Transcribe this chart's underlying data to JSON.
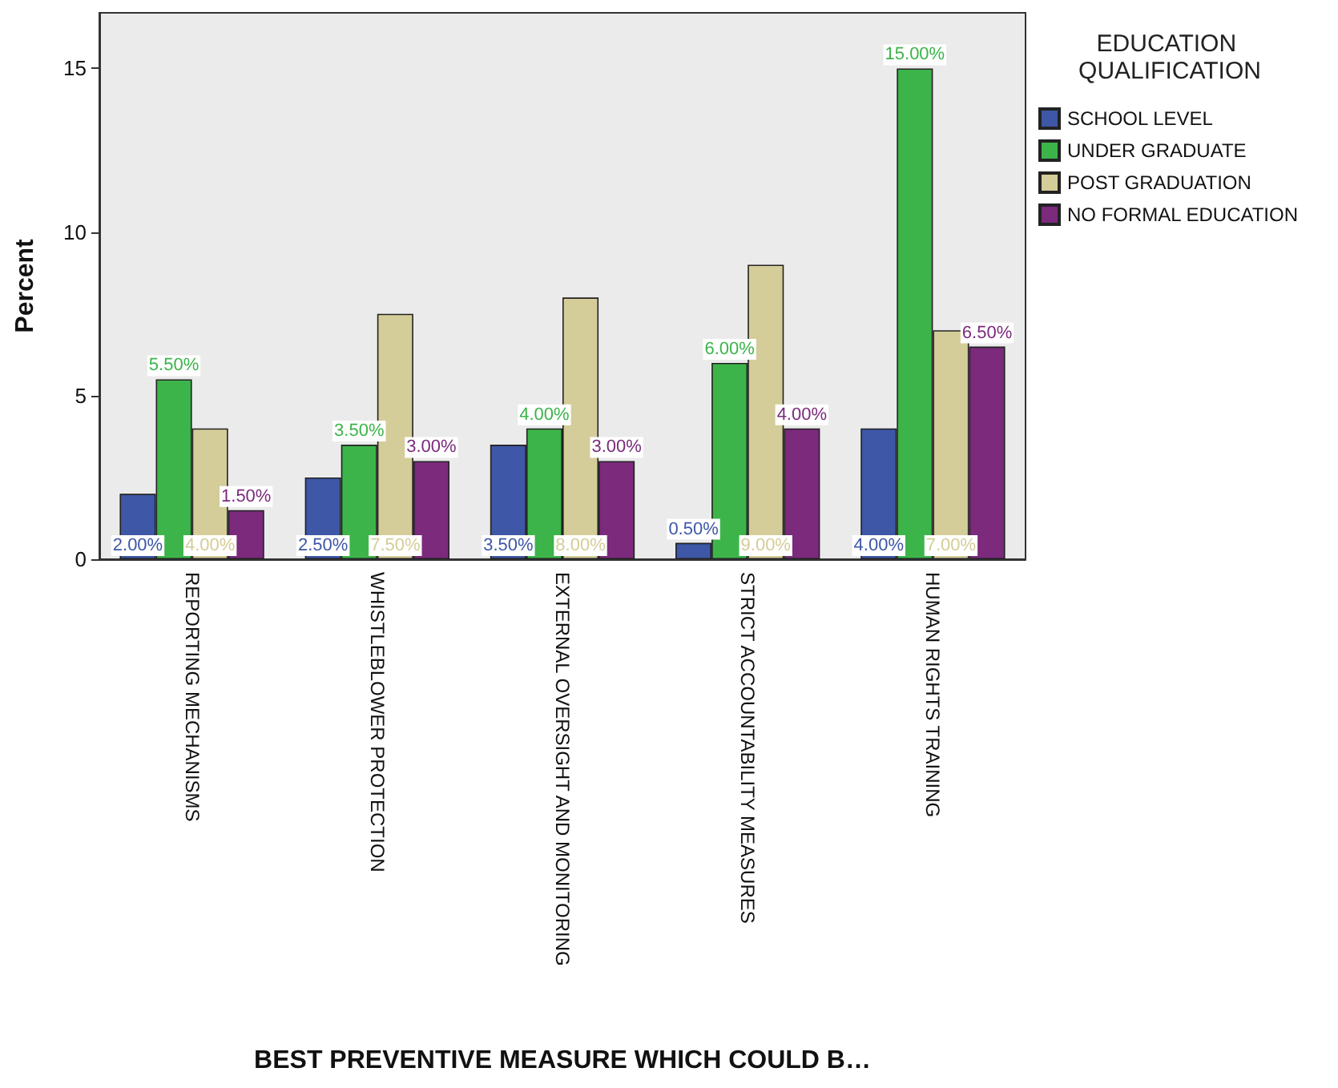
{
  "chart_data": {
    "type": "bar",
    "xlabel": "BEST PREVENTIVE MEASURE WHICH COULD B…",
    "ylabel": "Percent",
    "legend_title": "EDUCATION QUALIFICATION",
    "categories": [
      "REPORTING MECHANISMS",
      "WHISTLEBLOWER PROTECTION",
      "EXTERNAL OVERSIGHT AND MONITORING",
      "STRICT ACCOUNTABILITY MEASURES",
      "HUMAN RIGHTS TRAINING"
    ],
    "series": [
      {
        "name": "SCHOOL LEVEL",
        "color": "#3e57a6",
        "values": [
          2.0,
          2.5,
          3.5,
          0.5,
          4.0
        ],
        "value_labels": [
          "2.00%",
          "2.50%",
          "3.50%",
          "0.50%",
          "4.00%"
        ]
      },
      {
        "name": "UNDER GRADUATE",
        "color": "#3cb44a",
        "values": [
          5.5,
          3.5,
          4.0,
          6.0,
          15.0
        ],
        "value_labels": [
          "5.50%",
          "3.50%",
          "4.00%",
          "6.00%",
          "15.00%"
        ]
      },
      {
        "name": "POST GRADUATION",
        "color": "#d5cd99",
        "values": [
          4.0,
          7.5,
          8.0,
          9.0,
          7.0
        ],
        "value_labels": [
          "4.00%",
          "7.50%",
          "8.00%",
          "9.00%",
          "7.00%"
        ]
      },
      {
        "name": "NO FORMAL EDUCATION",
        "color": "#7b2a7c",
        "values": [
          1.5,
          3.0,
          3.0,
          4.0,
          6.5
        ],
        "value_labels": [
          "1.50%",
          "3.00%",
          "3.00%",
          "4.00%",
          "6.50%"
        ]
      }
    ],
    "ylim": [
      0,
      16.7
    ],
    "yticks": [
      0,
      5,
      10,
      15
    ],
    "grid": false,
    "legend": "right"
  }
}
